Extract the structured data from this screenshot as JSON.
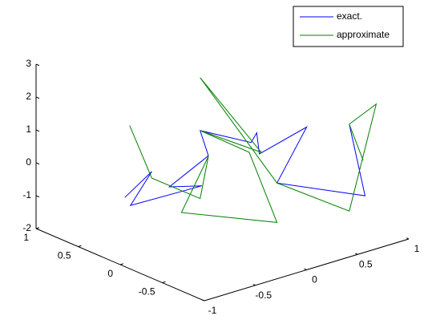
{
  "chart_data": {
    "type": "line3d",
    "series": [
      {
        "name": "exact.",
        "color": "#0000ff",
        "x": [
          -0.32,
          -0.18,
          -0.29,
          0.08,
          -0.09,
          0.11,
          0.07,
          0.33,
          0.36,
          0.37,
          0.61,
          0.46,
          0.91,
          0.83
        ],
        "y": [
          0.77,
          0.62,
          0.74,
          0.34,
          0.52,
          0.3,
          0.35,
          0.06,
          0.03,
          0.01,
          -0.26,
          -0.09,
          -0.59,
          -0.5
        ],
        "z": [
          -1.44,
          -0.62,
          -1.68,
          -0.99,
          -1.06,
          -0.06,
          0.69,
          0.4,
          0.7,
          0.07,
          0.96,
          -0.79,
          -1.05,
          1.1
        ]
      },
      {
        "name": "approximate",
        "color": "#008000",
        "x": [
          -0.29,
          -0.18,
          0.07,
          0.11,
          -0.03,
          0.46,
          0.32,
          0.07,
          0.38,
          0.07,
          0.46,
          0.83,
          0.97,
          0.83,
          0.9
        ],
        "y": [
          0.75,
          0.62,
          0.35,
          0.3,
          0.45,
          -0.09,
          0.07,
          0.35,
          0.0,
          0.35,
          -0.09,
          -0.5,
          -0.65,
          -0.5,
          -0.58
        ],
        "z": [
          0.74,
          -0.82,
          -1.38,
          -0.08,
          -1.82,
          -1.99,
          0.1,
          0.69,
          0.12,
          2.3,
          -0.79,
          -1.54,
          1.75,
          1.1,
          0.02
        ]
      }
    ],
    "xlim": [
      -1,
      1
    ],
    "xticks": [
      -1,
      -0.5,
      0,
      0.5,
      1
    ],
    "ylim": [
      -1,
      1
    ],
    "yticks": [
      -0.5,
      0,
      0.5,
      1
    ],
    "zlim": [
      -2,
      3
    ],
    "zticks": [
      -2,
      -1,
      0,
      1,
      2,
      3
    ],
    "legend": "top-right",
    "grid": false
  }
}
